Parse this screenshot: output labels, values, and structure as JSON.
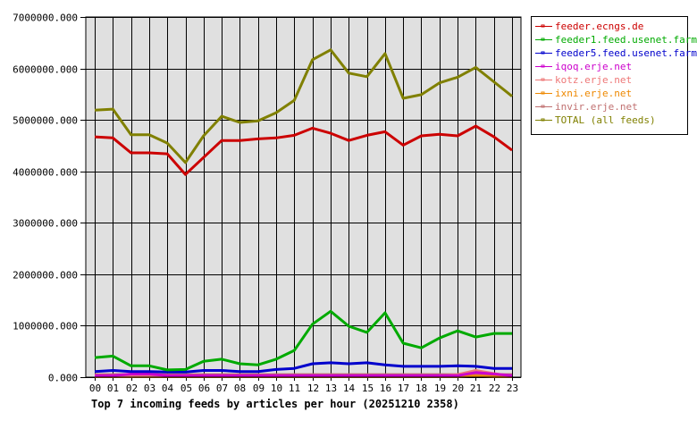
{
  "chart_data": {
    "type": "line",
    "title": "Top 7 incoming feeds by articles per hour (20251210 2358)",
    "xlabel": "",
    "ylabel": "",
    "ylim": [
      0,
      7000000
    ],
    "grid": true,
    "legend_position": "right",
    "y_ticks": [
      "0.000",
      "1000000.000",
      "2000000.000",
      "3000000.000",
      "4000000.000",
      "5000000.000",
      "6000000.000",
      "7000000.000"
    ],
    "categories": [
      "00",
      "01",
      "02",
      "03",
      "04",
      "05",
      "06",
      "07",
      "08",
      "09",
      "10",
      "11",
      "12",
      "13",
      "14",
      "15",
      "16",
      "17",
      "18",
      "19",
      "20",
      "21",
      "22",
      "23"
    ],
    "series": [
      {
        "name": "feeder.ecngs.de",
        "color": "#cc0000",
        "values": [
          4670000,
          4650000,
          4360000,
          4360000,
          4340000,
          3940000,
          4270000,
          4600000,
          4600000,
          4630000,
          4650000,
          4700000,
          4840000,
          4740000,
          4600000,
          4700000,
          4770000,
          4510000,
          4690000,
          4720000,
          4690000,
          4880000,
          4670000,
          4410000
        ]
      },
      {
        "name": "feeder1.feed.usenet.farm",
        "color": "#00aa00",
        "values": [
          380000,
          410000,
          220000,
          220000,
          140000,
          150000,
          310000,
          350000,
          260000,
          240000,
          350000,
          520000,
          1030000,
          1280000,
          990000,
          870000,
          1250000,
          660000,
          570000,
          760000,
          900000,
          780000,
          850000,
          850000
        ]
      },
      {
        "name": "feeder5.feed.usenet.farm",
        "color": "#0000cc",
        "values": [
          110000,
          130000,
          110000,
          110000,
          100000,
          100000,
          130000,
          130000,
          110000,
          110000,
          150000,
          170000,
          260000,
          280000,
          260000,
          280000,
          240000,
          210000,
          210000,
          210000,
          220000,
          210000,
          170000,
          170000
        ]
      },
      {
        "name": "iqoq.erje.net",
        "color": "#cc00cc",
        "values": [
          30000,
          30000,
          60000,
          60000,
          30000,
          30000,
          30000,
          30000,
          30000,
          30000,
          30000,
          30000,
          30000,
          30000,
          30000,
          30000,
          30000,
          30000,
          30000,
          30000,
          30000,
          90000,
          60000,
          30000
        ]
      },
      {
        "name": "kotz.erje.net",
        "color": "#ee7777",
        "values": [
          20000,
          20000,
          20000,
          20000,
          20000,
          20000,
          20000,
          20000,
          20000,
          20000,
          20000,
          20000,
          20000,
          20000,
          20000,
          20000,
          20000,
          20000,
          20000,
          20000,
          50000,
          130000,
          70000,
          20000
        ]
      },
      {
        "name": "ixni.erje.net",
        "color": "#ee8800",
        "values": [
          10000,
          10000,
          10000,
          10000,
          10000,
          10000,
          10000,
          10000,
          10000,
          10000,
          10000,
          10000,
          10000,
          10000,
          10000,
          10000,
          10000,
          10000,
          10000,
          10000,
          10000,
          20000,
          10000,
          10000
        ]
      },
      {
        "name": "invir.erje.net",
        "color": "#c07070",
        "values": [
          50000,
          50000,
          50000,
          50000,
          50000,
          50000,
          50000,
          50000,
          50000,
          50000,
          50000,
          50000,
          50000,
          50000,
          50000,
          50000,
          50000,
          50000,
          50000,
          50000,
          50000,
          50000,
          50000,
          50000
        ]
      },
      {
        "name": "TOTAL (all feeds)",
        "color": "#808000",
        "values": [
          5190000,
          5210000,
          4710000,
          4710000,
          4550000,
          4170000,
          4690000,
          5070000,
          4950000,
          4980000,
          5140000,
          5380000,
          6170000,
          6360000,
          5910000,
          5840000,
          6290000,
          5420000,
          5490000,
          5720000,
          5830000,
          6020000,
          5740000,
          5460000
        ]
      }
    ]
  },
  "legend": {
    "items": [
      {
        "label": "feeder.ecngs.de",
        "color": "#cc0000"
      },
      {
        "label": "feeder1.feed.usenet.farm",
        "color": "#00aa00"
      },
      {
        "label": "feeder5.feed.usenet.farm",
        "color": "#0000cc"
      },
      {
        "label": "iqoq.erje.net",
        "color": "#cc00cc"
      },
      {
        "label": "kotz.erje.net",
        "color": "#ee7777"
      },
      {
        "label": "ixni.erje.net",
        "color": "#ee8800"
      },
      {
        "label": "invir.erje.net",
        "color": "#c07070"
      },
      {
        "label": "TOTAL (all feeds)",
        "color": "#808000"
      }
    ]
  },
  "colors": {
    "plot_background": "#e0e0e0",
    "grid": "#000000"
  }
}
